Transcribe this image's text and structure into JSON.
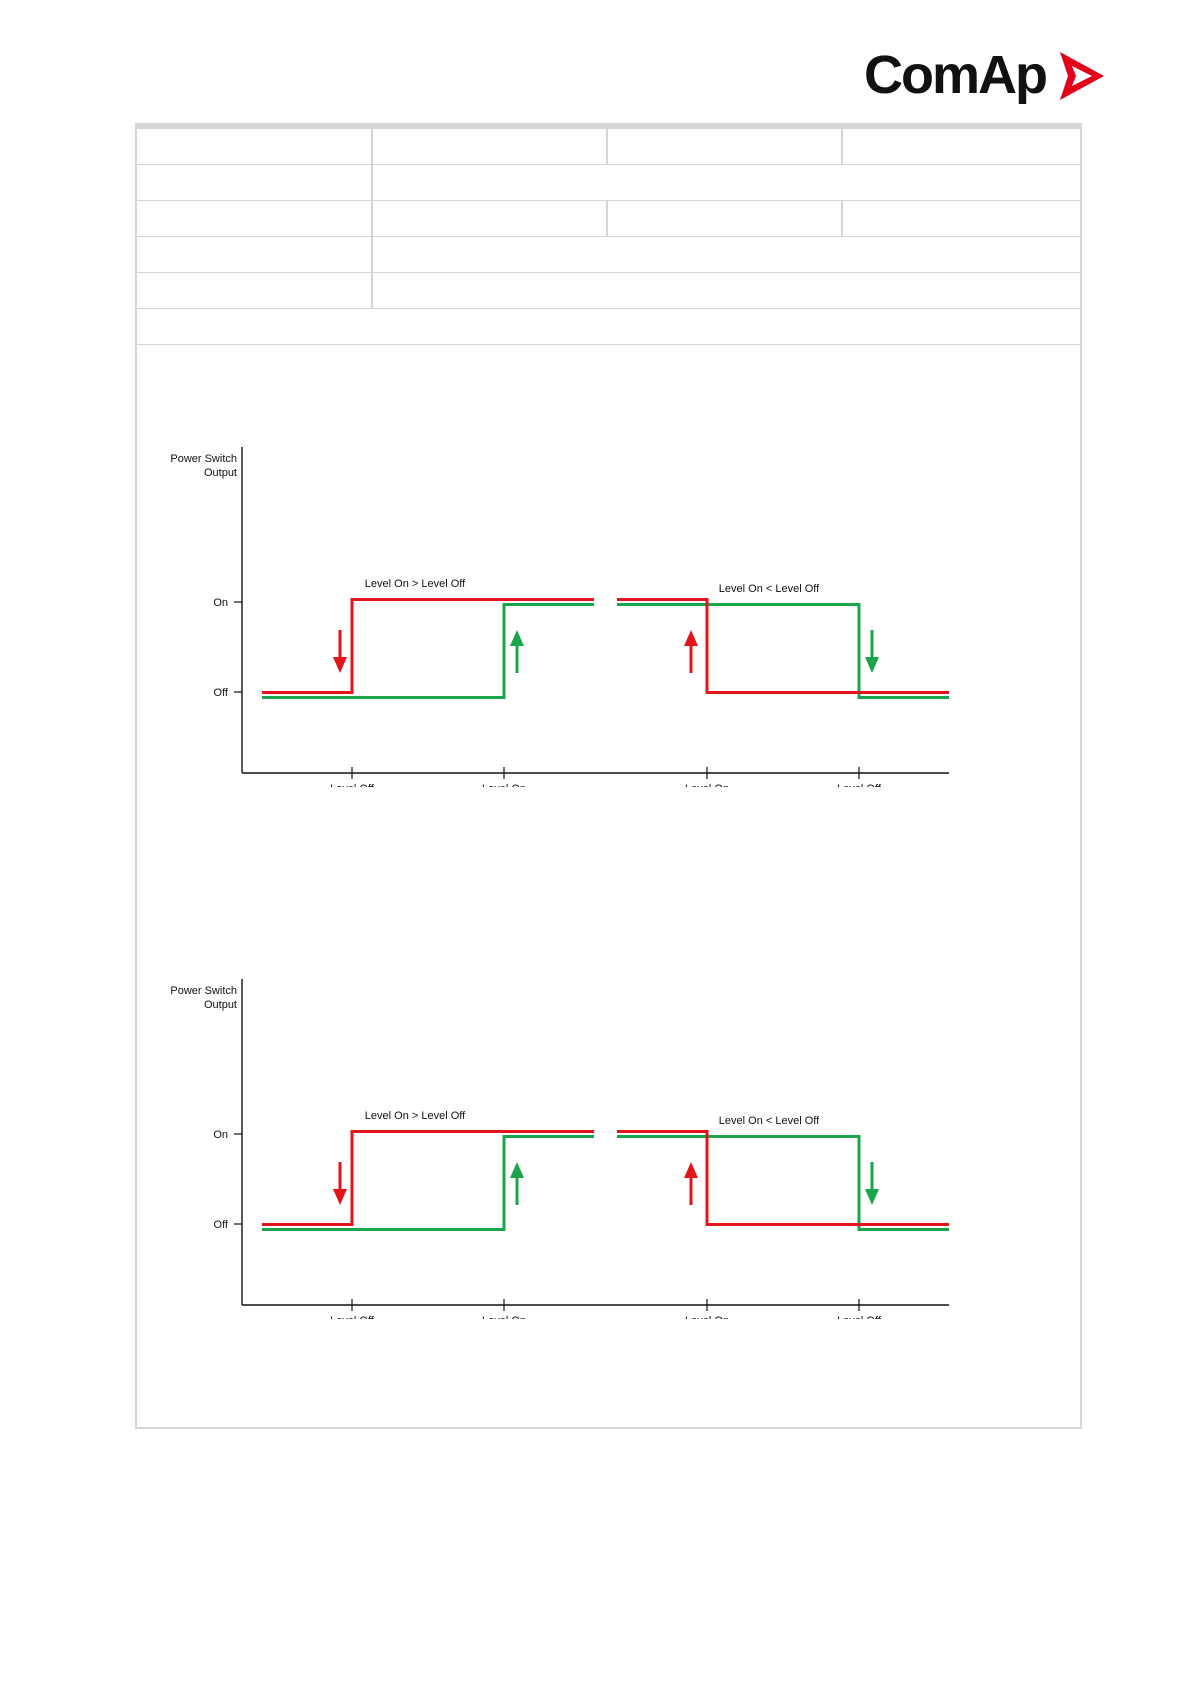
{
  "brand": {
    "name": "ComAp",
    "accent": "#e3001b"
  },
  "table": {
    "rows": [
      {
        "layout": "four",
        "cells": [
          "",
          "",
          "",
          ""
        ]
      },
      {
        "layout": "two",
        "cells": [
          "",
          ""
        ]
      },
      {
        "layout": "four",
        "cells": [
          "",
          "",
          "",
          ""
        ]
      },
      {
        "layout": "two",
        "cells": [
          "",
          ""
        ]
      },
      {
        "layout": "two",
        "cells": [
          "",
          ""
        ]
      },
      {
        "layout": "one",
        "cells": [
          ""
        ]
      }
    ]
  },
  "chart_data": [
    {
      "type": "line",
      "ylabel": [
        "Power Switch",
        "Output"
      ],
      "y_ticks": [
        "On",
        "Off"
      ],
      "x_ticks": [
        "Level Off",
        "Level On",
        "Level On",
        "Level Off"
      ],
      "colors": {
        "red": "#e3141b",
        "green": "#1aa54a"
      },
      "panels": [
        {
          "caption": "Level On > Level Off",
          "series": [
            {
              "color": "red",
              "x": [
                "start",
                "Level Off",
                "Level Off",
                "end"
              ],
              "y": [
                "Off",
                "Off",
                "On",
                "On"
              ]
            },
            {
              "color": "green",
              "x": [
                "start",
                "Level On",
                "Level On",
                "end"
              ],
              "y": [
                "Off",
                "Off",
                "On",
                "On"
              ]
            }
          ],
          "arrows": [
            {
              "color": "red",
              "direction": "down",
              "near": "Level Off"
            },
            {
              "color": "green",
              "direction": "up",
              "near": "Level On"
            }
          ]
        },
        {
          "caption": "Level On < Level Off",
          "series": [
            {
              "color": "red",
              "x": [
                "start",
                "Level On",
                "Level On",
                "end"
              ],
              "y": [
                "On",
                "On",
                "Off",
                "Off"
              ]
            },
            {
              "color": "green",
              "x": [
                "start",
                "Level Off",
                "Level Off",
                "end"
              ],
              "y": [
                "On",
                "On",
                "Off",
                "Off"
              ]
            }
          ],
          "arrows": [
            {
              "color": "red",
              "direction": "up",
              "near": "Level On"
            },
            {
              "color": "green",
              "direction": "down",
              "near": "Level Off"
            }
          ]
        }
      ]
    },
    {
      "type": "line",
      "ylabel": [
        "Power Switch",
        "Output"
      ],
      "y_ticks": [
        "On",
        "Off"
      ],
      "x_ticks": [
        "Level Off",
        "Level On",
        "Level On",
        "Level Off"
      ],
      "colors": {
        "red": "#e3141b",
        "green": "#1aa54a"
      },
      "panels": [
        {
          "caption": "Level On > Level Off",
          "series": [
            {
              "color": "red",
              "x": [
                "start",
                "Level Off",
                "Level Off",
                "end"
              ],
              "y": [
                "Off",
                "Off",
                "On",
                "On"
              ]
            },
            {
              "color": "green",
              "x": [
                "start",
                "Level On",
                "Level On",
                "end"
              ],
              "y": [
                "Off",
                "Off",
                "On",
                "On"
              ]
            }
          ],
          "arrows": [
            {
              "color": "red",
              "direction": "down",
              "near": "Level Off"
            },
            {
              "color": "green",
              "direction": "up",
              "near": "Level On"
            }
          ]
        },
        {
          "caption": "Level On < Level Off",
          "series": [
            {
              "color": "red",
              "x": [
                "start",
                "Level On",
                "Level On",
                "end"
              ],
              "y": [
                "On",
                "On",
                "Off",
                "Off"
              ]
            },
            {
              "color": "green",
              "x": [
                "start",
                "Level Off",
                "Level Off",
                "end"
              ],
              "y": [
                "On",
                "On",
                "Off",
                "Off"
              ]
            }
          ],
          "arrows": [
            {
              "color": "red",
              "direction": "up",
              "near": "Level On"
            },
            {
              "color": "green",
              "direction": "down",
              "near": "Level Off"
            }
          ]
        }
      ]
    }
  ]
}
